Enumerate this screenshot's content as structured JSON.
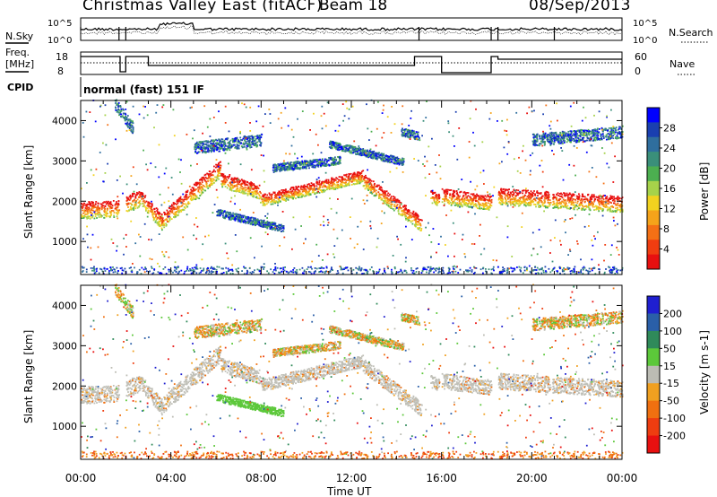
{
  "header": {
    "title": "Christmas Valley East (fitACF)",
    "beam": "Beam 18",
    "date": "08/Sep/2013"
  },
  "panels": {
    "nsky_label": "N.Sky",
    "nsearch_label": "N.Search",
    "noise_ticks_left": [
      "10^5",
      "10^0"
    ],
    "noise_ticks_right": [
      "10^5",
      "10^0"
    ],
    "freq_label_1": "Freq.",
    "freq_label_2": "[MHz]",
    "freq_ticks": [
      "18",
      "8"
    ],
    "nave_label": "Nave",
    "nave_ticks": [
      "60",
      "0"
    ],
    "cpid_label": "CPID",
    "cpid_text": "normal (fast) 151 IF"
  },
  "colors": {
    "power_scale": [
      "#0000ff",
      "#1a3fb0",
      "#2f6e9e",
      "#3a8f7a",
      "#4caf50",
      "#a6d24a",
      "#f2d21f",
      "#f5a31a",
      "#f47015",
      "#f03d10",
      "#e81010"
    ],
    "velocity_scale": [
      "#1f1fd0",
      "#2a5fa8",
      "#2f8a5a",
      "#5cc83a",
      "#bcbcb4",
      "#f0a020",
      "#f07010",
      "#ee3d10",
      "#e81010"
    ],
    "ground_scatter": "#c0c0b8"
  },
  "chart_data": [
    {
      "type": "heatmap",
      "name": "power",
      "xlabel": "",
      "ylabel": "Slant Range [km]",
      "colorbar_label": "Power [dB]",
      "colorbar_ticks": [
        "28",
        "24",
        "20",
        "16",
        "12",
        "8",
        "4"
      ],
      "xlim": [
        0,
        24
      ],
      "ylim": [
        180,
        4500
      ],
      "yticks": [
        1000,
        2000,
        3000,
        4000
      ],
      "xticks_hours": [
        0,
        4,
        8,
        12,
        16,
        20,
        24
      ]
    },
    {
      "type": "heatmap",
      "name": "velocity",
      "xlabel": "Time UT",
      "ylabel": "Slant Range [km]",
      "colorbar_label": "Velocity [m s-1]",
      "colorbar_ticks": [
        "200",
        "100",
        "50",
        "15",
        "-15",
        "-50",
        "-100",
        "-200"
      ],
      "xlim": [
        0,
        24
      ],
      "ylim": [
        180,
        4500
      ],
      "yticks": [
        1000,
        2000,
        3000,
        4000
      ],
      "xticks": [
        "00:00",
        "04:00",
        "08:00",
        "12:00",
        "16:00",
        "20:00",
        "00:00"
      ]
    }
  ]
}
